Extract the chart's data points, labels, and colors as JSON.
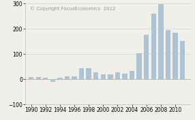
{
  "years": [
    1990,
    1991,
    1992,
    1993,
    1994,
    1995,
    1996,
    1997,
    1998,
    1999,
    2000,
    2001,
    2002,
    2003,
    2004,
    2005,
    2006,
    2007,
    2008,
    2009,
    2010,
    2011
  ],
  "values": [
    8,
    8,
    5,
    -10,
    5,
    12,
    10,
    45,
    45,
    28,
    20,
    20,
    28,
    22,
    32,
    102,
    175,
    260,
    298,
    195,
    185,
    153
  ],
  "bar_color": "#adc4d4",
  "background_color": "#f0efea",
  "ylim": [
    -100,
    300
  ],
  "yticks": [
    -100,
    0,
    100,
    200,
    300
  ],
  "xticks": [
    1990,
    1992,
    1994,
    1996,
    1998,
    2000,
    2002,
    2004,
    2006,
    2008,
    2010
  ],
  "copyright_text": "© Copyright FocusEconomics  2012",
  "tick_fontsize": 5.5,
  "annotation_fontsize": 5.0
}
